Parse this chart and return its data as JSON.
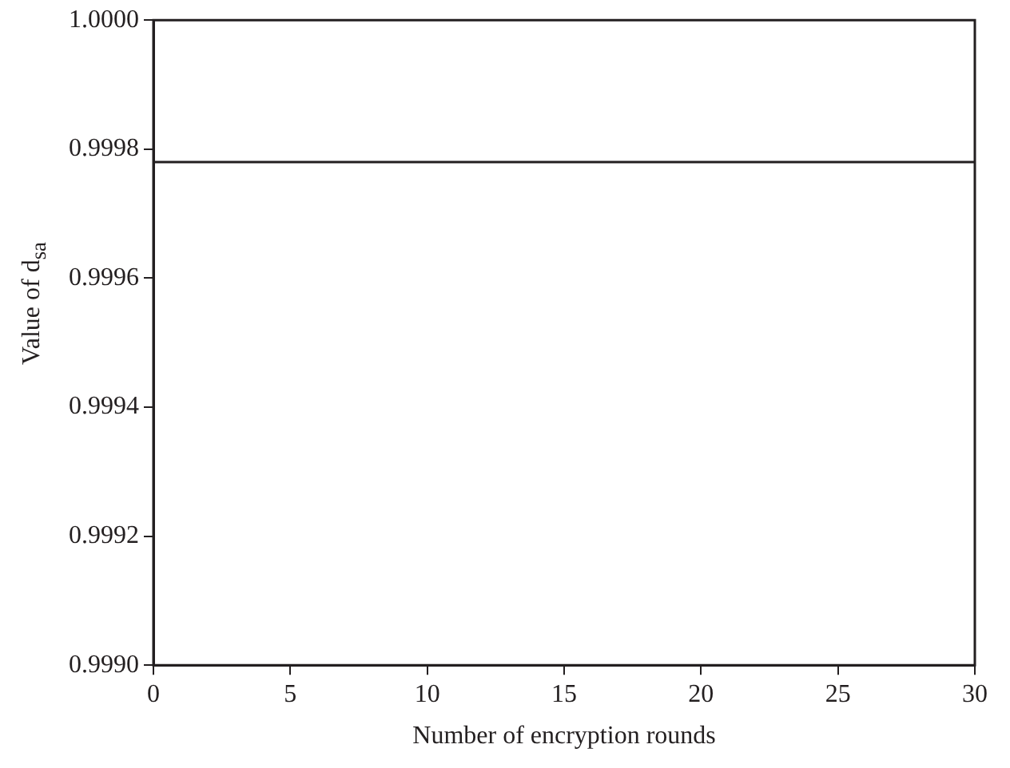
{
  "chart_data": {
    "type": "line",
    "xlabel": "Number of encryption rounds",
    "ylabel": "Value of d$_{sa}$",
    "x": [
      0,
      30
    ],
    "series": [
      {
        "color": "#231f20",
        "values": [
          0.99978,
          0.99978
        ]
      }
    ],
    "xlim": [
      0,
      30
    ],
    "xticks": [
      0,
      5,
      10,
      15,
      20,
      25,
      30
    ],
    "ylim": [
      0.999,
      1
    ],
    "yticks": [
      {
        "value": 0.999,
        "label": "0.9990"
      },
      {
        "value": 0.9992,
        "label": "0.9992"
      },
      {
        "value": 0.9994,
        "label": "0.9994"
      },
      {
        "value": 0.9996,
        "label": "0.9996"
      },
      {
        "value": 0.9998,
        "label": "0.9998"
      },
      {
        "value": 1,
        "label": "1.0000"
      }
    ],
    "marker": "none",
    "line_style": "solid"
  }
}
